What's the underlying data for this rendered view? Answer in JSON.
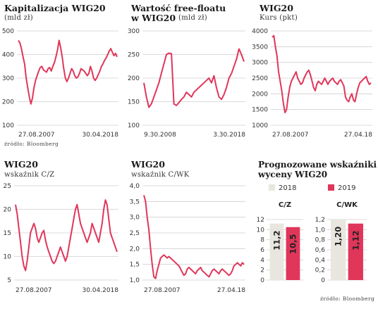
{
  "colors": {
    "line": "#e0365a",
    "grid": "#cfcfcf",
    "bar2018": "#e8e6df",
    "bar2019": "#e0365a"
  },
  "source_label": "źródło: Bloomberg",
  "chart_data": [
    {
      "id": "cap",
      "type": "line",
      "title": "Kapitalizacja WIG20",
      "subtitle": "(mld zł)",
      "ylim": [
        100,
        500
      ],
      "yticks": [
        100,
        200,
        300,
        400,
        500
      ],
      "xstart": "27.08.2007",
      "xend": "30.04.2018",
      "grid": true,
      "series": [
        {
          "values": [
            460,
            450,
            425,
            390,
            360,
            300,
            260,
            220,
            190,
            215,
            260,
            290,
            310,
            330,
            345,
            350,
            335,
            330,
            325,
            340,
            345,
            330,
            350,
            365,
            390,
            420,
            460,
            430,
            390,
            340,
            300,
            285,
            300,
            320,
            340,
            330,
            310,
            300,
            305,
            320,
            340,
            335,
            330,
            320,
            310,
            320,
            350,
            330,
            300,
            290,
            300,
            315,
            330,
            350,
            360,
            375,
            385,
            400,
            415,
            425,
            410,
            395,
            405,
            390
          ]
        }
      ]
    },
    {
      "id": "ff",
      "type": "line",
      "title": "Wartość free-floatu",
      "title2": "w WIG20",
      "subtitle": "(mld zł)",
      "ylim": [
        100,
        300
      ],
      "yticks": [
        100,
        150,
        200,
        250,
        300
      ],
      "xstart": "9.30.2008",
      "xend": "3.30.2018",
      "grid": true,
      "series": [
        {
          "values": [
            190,
            160,
            138,
            145,
            160,
            175,
            190,
            210,
            230,
            250,
            253,
            252,
            145,
            142,
            148,
            155,
            160,
            170,
            165,
            160,
            170,
            175,
            180,
            185,
            190,
            195,
            200,
            190,
            205,
            180,
            160,
            155,
            165,
            180,
            200,
            210,
            225,
            240,
            262,
            250,
            235
          ]
        }
      ]
    },
    {
      "id": "wig",
      "type": "line",
      "title": "WIG20",
      "subtitle": "Kurs (pkt)",
      "ylim": [
        1000,
        4000
      ],
      "yticks": [
        1000,
        1500,
        2000,
        2500,
        3000,
        3500,
        4000
      ],
      "xstart": "27.08.2007",
      "xend": "27.04.18",
      "grid": true,
      "series": [
        {
          "values": [
            3800,
            3850,
            3500,
            3200,
            2700,
            2400,
            2100,
            1700,
            1400,
            1500,
            1900,
            2200,
            2400,
            2500,
            2600,
            2700,
            2500,
            2400,
            2300,
            2350,
            2500,
            2600,
            2700,
            2750,
            2600,
            2400,
            2200,
            2100,
            2300,
            2400,
            2350,
            2300,
            2400,
            2500,
            2400,
            2300,
            2400,
            2450,
            2500,
            2400,
            2350,
            2300,
            2400,
            2450,
            2350,
            2250,
            1900,
            1800,
            1750,
            1900,
            2000,
            1800,
            1750,
            2000,
            2200,
            2350,
            2400,
            2450,
            2500,
            2550,
            2400,
            2300,
            2350
          ]
        }
      ]
    },
    {
      "id": "pe",
      "type": "line",
      "title": "WIG20",
      "subtitle": "wskaźnik C/Z",
      "ylim": [
        5,
        25
      ],
      "yticks": [
        5,
        10,
        15,
        20,
        25
      ],
      "xstart": "27.08.2007",
      "xend": "30.04.2018",
      "grid": true,
      "series": [
        {
          "values": [
            21,
            19,
            16,
            13,
            10,
            8,
            7,
            9,
            12,
            15,
            16,
            17,
            16,
            14,
            13,
            14,
            15,
            15.5,
            13.5,
            12,
            11,
            10,
            9,
            8.5,
            9,
            10,
            11,
            12,
            11,
            10,
            9,
            10,
            12,
            14,
            16,
            18,
            20,
            21,
            19,
            17,
            16,
            15,
            14,
            13,
            14,
            15,
            17,
            16,
            15,
            14,
            13,
            15,
            17,
            20,
            22,
            21,
            18,
            15,
            14,
            13,
            12,
            11
          ]
        }
      ]
    },
    {
      "id": "pbv",
      "type": "line",
      "title": "WIG20",
      "subtitle": "wskaźnik C/WK",
      "ylim": [
        1.0,
        4.0
      ],
      "yticks": [
        1.0,
        1.5,
        2.0,
        2.5,
        3.0,
        3.5,
        4.0
      ],
      "xstart": "27.08.2007",
      "xend": "27.04.18",
      "grid": true,
      "series": [
        {
          "values": [
            3.7,
            3.5,
            3.0,
            2.6,
            2.0,
            1.5,
            1.1,
            1.05,
            1.3,
            1.5,
            1.7,
            1.75,
            1.8,
            1.75,
            1.7,
            1.75,
            1.7,
            1.65,
            1.6,
            1.55,
            1.5,
            1.45,
            1.35,
            1.25,
            1.15,
            1.2,
            1.35,
            1.4,
            1.35,
            1.3,
            1.25,
            1.2,
            1.3,
            1.35,
            1.4,
            1.3,
            1.25,
            1.2,
            1.15,
            1.1,
            1.2,
            1.3,
            1.35,
            1.3,
            1.25,
            1.2,
            1.3,
            1.35,
            1.3,
            1.25,
            1.2,
            1.15,
            1.2,
            1.3,
            1.45,
            1.5,
            1.55,
            1.5,
            1.45,
            1.55,
            1.5
          ]
        }
      ]
    },
    {
      "id": "forecast",
      "type": "bar",
      "title": "Prognozowane wskaźniki",
      "title2": "wyceny WIG20",
      "legend": [
        {
          "name": "2018"
        },
        {
          "name": "2019"
        }
      ],
      "groups": [
        {
          "name": "C/Z",
          "ylim": [
            0,
            12
          ],
          "yticks": [
            0,
            2,
            4,
            6,
            8,
            10,
            12
          ],
          "values": [
            11.2,
            10.5
          ],
          "labels": [
            "11,2",
            "10,5"
          ]
        },
        {
          "name": "C/WK",
          "ylim": [
            0,
            1.2
          ],
          "yticks": [
            0,
            0.2,
            0.4,
            0.6,
            0.8,
            1.0,
            1.2
          ],
          "tick_labels": [
            "0",
            "0,2",
            "0,4",
            "0,6",
            "0,8",
            "1,0",
            "1,2"
          ],
          "values": [
            1.2,
            1.12
          ],
          "labels": [
            "1,20",
            "1,12"
          ]
        }
      ]
    }
  ]
}
